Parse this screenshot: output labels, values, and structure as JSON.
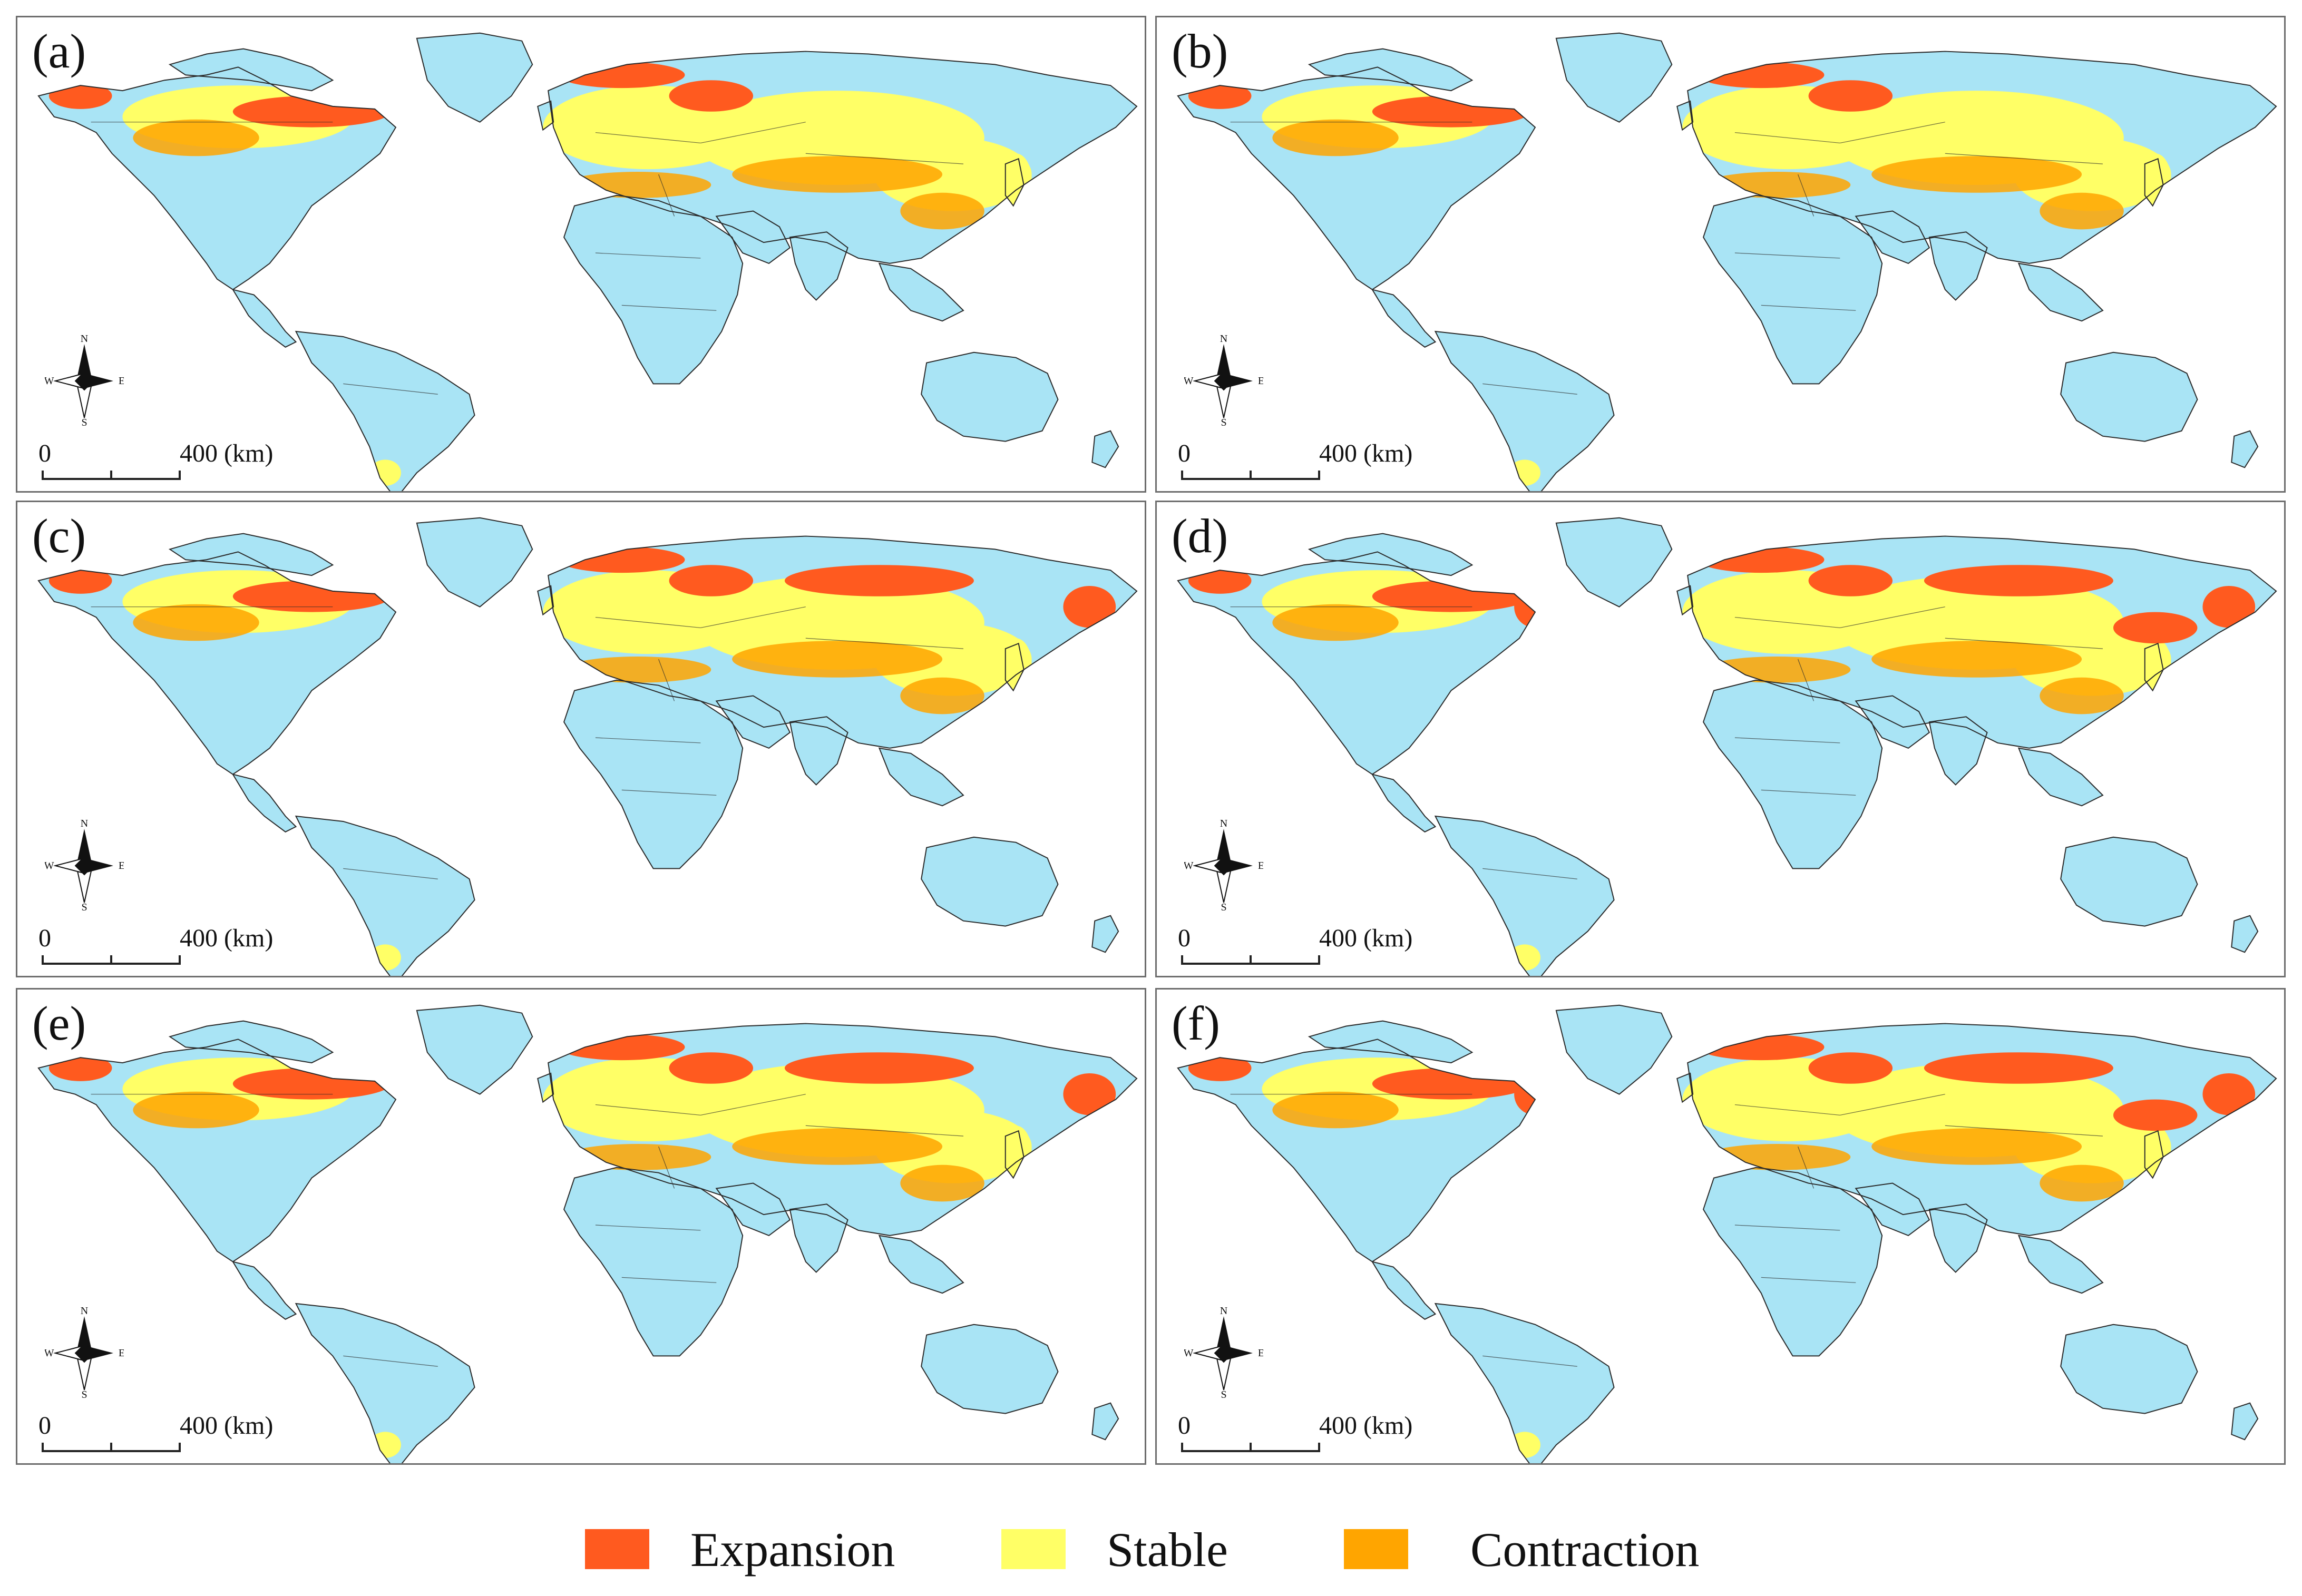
{
  "legend": {
    "items": [
      {
        "label": "Expansion",
        "color": "#ff5a1f"
      },
      {
        "label": "Stable",
        "color": "#ffff66"
      },
      {
        "label": "Contraction",
        "color": "#ffa500"
      }
    ]
  },
  "compass": {
    "n": "N",
    "s": "S",
    "e": "E",
    "w": "W"
  },
  "scale": {
    "zero": "0",
    "end": "400 (km)"
  },
  "colors": {
    "land": "#a9e4f5",
    "border": "#2a2a2a",
    "expansion": "#ff5a1f",
    "stable": "#ffff66",
    "contraction": "#ffa500"
  },
  "panels": [
    {
      "label": "(a)",
      "expansion_level": 1
    },
    {
      "label": "(b)",
      "expansion_level": 1
    },
    {
      "label": "(c)",
      "expansion_level": 2
    },
    {
      "label": "(d)",
      "expansion_level": 3
    },
    {
      "label": "(e)",
      "expansion_level": 2
    },
    {
      "label": "(f)",
      "expansion_level": 4
    }
  ]
}
